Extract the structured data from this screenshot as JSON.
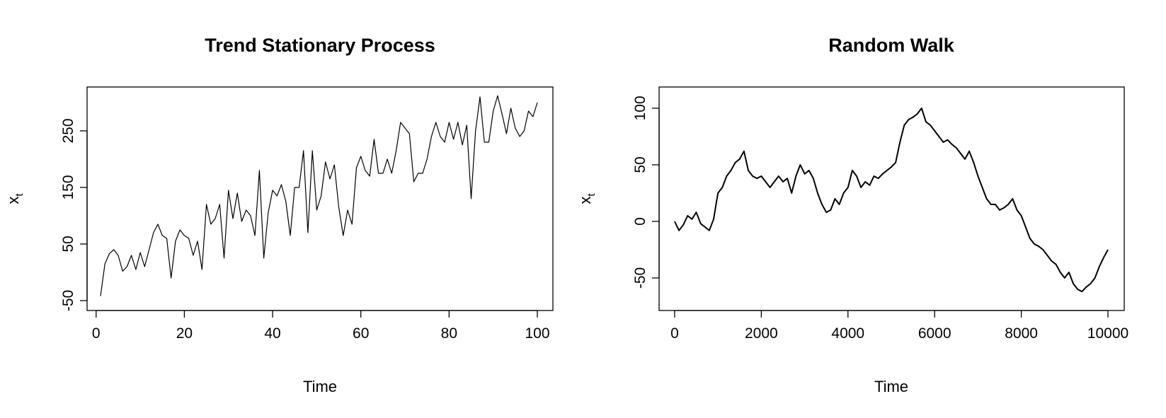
{
  "chart_data": [
    {
      "type": "line",
      "title": "Trend Stationary Process",
      "xlabel": "Time",
      "ylabel": "x",
      "ylabel_sub": "t",
      "xlim": [
        1,
        100
      ],
      "ylim": [
        -50,
        310
      ],
      "xticks": [
        0,
        20,
        40,
        60,
        80,
        100
      ],
      "yticks": [
        -50,
        50,
        150,
        250
      ],
      "grid": false,
      "series": [
        {
          "x": [
            1,
            2,
            3,
            4,
            5,
            6,
            7,
            8,
            9,
            10,
            11,
            12,
            13,
            14,
            15,
            16,
            17,
            18,
            19,
            20,
            21,
            22,
            23,
            24,
            25,
            26,
            27,
            28,
            29,
            30,
            31,
            32,
            33,
            34,
            35,
            36,
            37,
            38,
            39,
            40,
            41,
            42,
            43,
            44,
            45,
            46,
            47,
            48,
            49,
            50,
            51,
            52,
            53,
            54,
            55,
            56,
            57,
            58,
            59,
            60,
            61,
            62,
            63,
            64,
            65,
            66,
            67,
            68,
            69,
            70,
            71,
            72,
            73,
            74,
            75,
            76,
            77,
            78,
            79,
            80,
            81,
            82,
            83,
            84,
            85,
            86,
            87,
            88,
            89,
            90,
            91,
            92,
            93,
            94,
            95,
            96,
            97,
            98,
            99,
            100
          ],
          "y": [
            -42,
            15,
            33,
            40,
            30,
            2,
            10,
            30,
            5,
            35,
            10,
            40,
            70,
            85,
            65,
            60,
            -10,
            55,
            75,
            65,
            60,
            30,
            55,
            5,
            120,
            85,
            95,
            120,
            25,
            145,
            95,
            140,
            90,
            110,
            100,
            65,
            180,
            25,
            105,
            145,
            135,
            155,
            125,
            65,
            150,
            150,
            215,
            70,
            215,
            110,
            135,
            195,
            165,
            190,
            115,
            65,
            110,
            85,
            185,
            205,
            180,
            170,
            235,
            175,
            175,
            200,
            175,
            215,
            265,
            255,
            245,
            160,
            175,
            175,
            200,
            240,
            265,
            240,
            230,
            265,
            235,
            265,
            225,
            260,
            130,
            250,
            310,
            230,
            230,
            285,
            312,
            280,
            245,
            290,
            255,
            240,
            250,
            285,
            275,
            300
          ]
        }
      ]
    },
    {
      "type": "line",
      "title": "Random Walk",
      "xlabel": "Time",
      "ylabel": "x",
      "ylabel_sub": "t",
      "xlim": [
        1,
        10000
      ],
      "ylim": [
        -70,
        110
      ],
      "xticks": [
        0,
        2000,
        4000,
        6000,
        8000,
        10000
      ],
      "yticks": [
        -50,
        0,
        50,
        100
      ],
      "grid": false,
      "series": [
        {
          "x": [
            0,
            100,
            200,
            300,
            400,
            500,
            600,
            700,
            800,
            900,
            1000,
            1100,
            1200,
            1300,
            1400,
            1500,
            1600,
            1700,
            1800,
            1900,
            2000,
            2100,
            2200,
            2300,
            2400,
            2500,
            2600,
            2700,
            2800,
            2900,
            3000,
            3100,
            3200,
            3300,
            3400,
            3500,
            3600,
            3700,
            3800,
            3900,
            4000,
            4100,
            4200,
            4300,
            4400,
            4500,
            4600,
            4700,
            4800,
            4900,
            5000,
            5100,
            5200,
            5300,
            5400,
            5500,
            5600,
            5700,
            5800,
            5900,
            6000,
            6100,
            6200,
            6300,
            6400,
            6500,
            6600,
            6700,
            6800,
            6900,
            7000,
            7100,
            7200,
            7300,
            7400,
            7500,
            7600,
            7700,
            7800,
            7900,
            8000,
            8100,
            8200,
            8300,
            8400,
            8500,
            8600,
            8700,
            8800,
            8900,
            9000,
            9100,
            9200,
            9300,
            9400,
            9500,
            9600,
            9700,
            9800,
            9900,
            10000
          ],
          "y": [
            0,
            -8,
            -3,
            5,
            2,
            8,
            -2,
            -5,
            -8,
            2,
            25,
            30,
            40,
            45,
            52,
            55,
            62,
            45,
            40,
            38,
            40,
            35,
            30,
            35,
            40,
            35,
            38,
            25,
            40,
            50,
            42,
            45,
            38,
            25,
            15,
            8,
            10,
            20,
            15,
            25,
            30,
            45,
            40,
            30,
            35,
            32,
            40,
            38,
            42,
            45,
            48,
            52,
            70,
            85,
            90,
            92,
            95,
            100,
            88,
            85,
            80,
            75,
            70,
            72,
            68,
            65,
            60,
            55,
            62,
            52,
            40,
            30,
            20,
            15,
            15,
            10,
            12,
            15,
            20,
            10,
            5,
            -5,
            -15,
            -20,
            -22,
            -25,
            -30,
            -35,
            -38,
            -45,
            -50,
            -45,
            -55,
            -60,
            -62,
            -58,
            -55,
            -50,
            -40,
            -32,
            -25
          ]
        }
      ]
    }
  ]
}
